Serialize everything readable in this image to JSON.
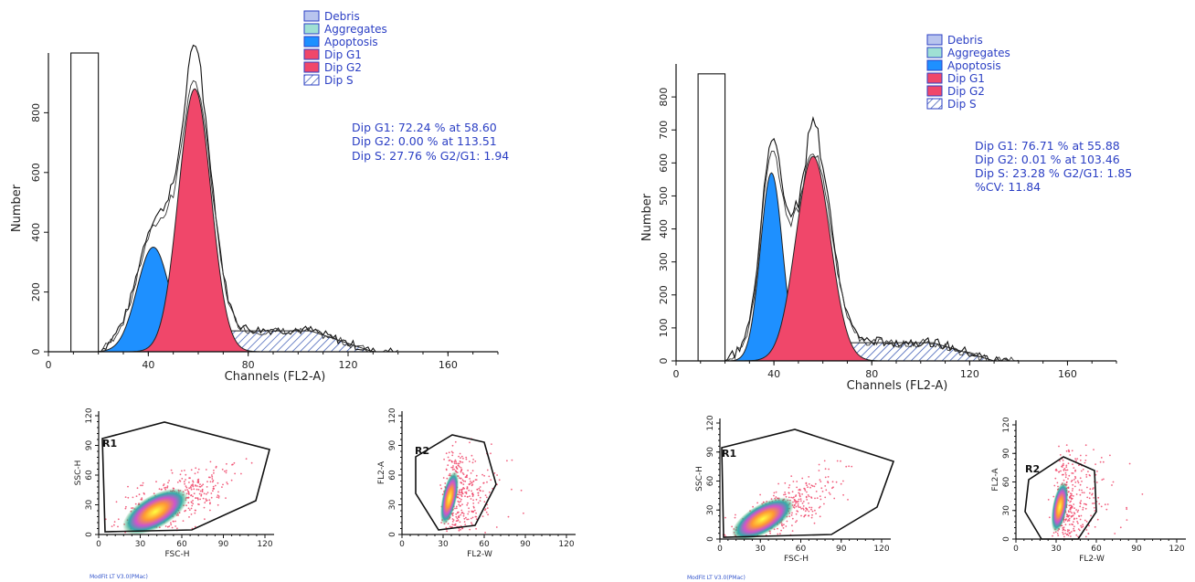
{
  "chart_data": [
    {
      "type": "area",
      "xlabel": "Channels (FL2-A)",
      "ylabel": "Number",
      "xlim": [
        0,
        180
      ],
      "ylim": [
        0,
        1000
      ],
      "xticks": [
        "0",
        "40",
        "80",
        "120",
        "160"
      ],
      "yticks": [
        "0",
        "200",
        "400",
        "600",
        "800"
      ],
      "legend": [
        "Debris",
        "Aggregates",
        "Apoptosis",
        "Dip G1",
        "Dip G2",
        "Dip S"
      ],
      "legend_position": "top",
      "stats": [
        "Dip G1: 72.24 % at 58.60",
        "Dip G2: 0.00 % at 113.51",
        "Dip S: 27.76 %   G2/G1: 1.94"
      ],
      "series": [
        {
          "name": "Apoptosis",
          "color": "#1e90ff",
          "peak_x": 42,
          "peak_y": 350,
          "sigma": 6.5
        },
        {
          "name": "Dip G1",
          "color": "#f0476a",
          "peak_x": 58.6,
          "peak_y": 880,
          "sigma": 6.5
        },
        {
          "name": "Dip S",
          "color": "#3050b0",
          "x_range": [
            58,
            130
          ],
          "level": 70
        }
      ],
      "debris_bar": {
        "x_range": [
          9,
          20
        ],
        "height": 1000
      }
    },
    {
      "type": "area",
      "xlabel": "Channels (FL2-A)",
      "ylabel": "Number",
      "xlim": [
        0,
        180
      ],
      "ylim": [
        0,
        900
      ],
      "xticks": [
        "0",
        "40",
        "80",
        "120",
        "160"
      ],
      "yticks": [
        "0",
        "100",
        "200",
        "300",
        "400",
        "500",
        "600",
        "700",
        "800"
      ],
      "legend": [
        "Debris",
        "Aggregates",
        "Apoptosis",
        "Dip G1",
        "Dip G2",
        "Dip S"
      ],
      "legend_position": "top",
      "stats": [
        "Dip G1: 76.71 % at 55.88",
        "Dip G2: 0.01 % at 103.46",
        "Dip S: 23.28 %   G2/G1: 1.85",
        "%CV: 11.84"
      ],
      "series": [
        {
          "name": "Apoptosis",
          "color": "#1e90ff",
          "peak_x": 39,
          "peak_y": 570,
          "sigma": 4.5
        },
        {
          "name": "Dip G1",
          "color": "#f0476a",
          "peak_x": 56,
          "peak_y": 620,
          "sigma": 7
        },
        {
          "name": "Dip S",
          "color": "#3050b0",
          "x_range": [
            55,
            130
          ],
          "level": 55
        }
      ],
      "debris_bar": {
        "x_range": [
          9,
          20
        ],
        "height": 870
      }
    }
  ],
  "legend_colors": {
    "Debris": "#b8c4ee",
    "Aggregates": "#9fe0d4",
    "Apoptosis": "#1e90ff",
    "Dip G1": "#f0476a",
    "Dip G2": "#f0476a",
    "Dip S": "#ffffff"
  },
  "scatter_plots": [
    {
      "gate": "R1",
      "xlabel": "FSC-H",
      "ylabel": "SSC-H",
      "ticks": [
        "0",
        "30",
        "60",
        "90",
        "120"
      ]
    },
    {
      "gate": "R2",
      "xlabel": "FL2-W",
      "ylabel": "FL2-A",
      "ticks": [
        "0",
        "30",
        "60",
        "90",
        "120"
      ]
    },
    {
      "gate": "R1",
      "xlabel": "FSC-H",
      "ylabel": "SSC-H",
      "ticks": [
        "0",
        "30",
        "60",
        "90",
        "120"
      ]
    },
    {
      "gate": "R2",
      "xlabel": "FL2-W",
      "ylabel": "FL2-A",
      "ticks": [
        "0",
        "30",
        "60",
        "90",
        "120"
      ]
    }
  ],
  "footer_left": "ModFit LT V3.0(PMac)",
  "footer_right": "ModFit LT V3.0(PMac)"
}
